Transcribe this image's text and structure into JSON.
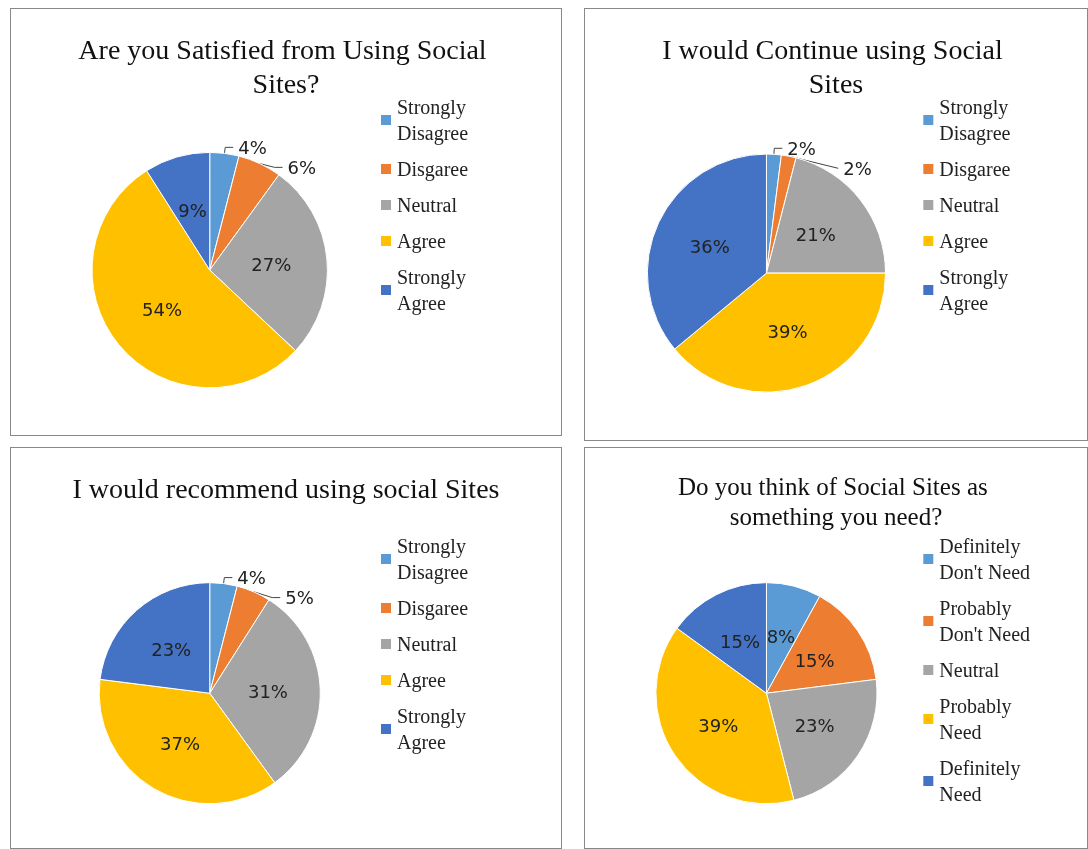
{
  "chart_data": [
    {
      "type": "pie",
      "title": "Are you Satisfied from Using Social Sites?",
      "categories": [
        "Strongly Disagree",
        "Disgaree",
        "Neutral",
        "Agree",
        "Strongly Agree"
      ],
      "values": [
        4,
        6,
        27,
        54,
        9
      ],
      "value_labels": [
        "4%",
        "6%",
        "27%",
        "54%",
        "9%"
      ],
      "colors": [
        "#5b9bd5",
        "#ed7d31",
        "#a5a5a5",
        "#ffc000",
        "#4472c4"
      ],
      "legend": "right"
    },
    {
      "type": "pie",
      "title": "I would Continue using Social Sites",
      "categories": [
        "Strongly Disagree",
        "Disgaree",
        "Neutral",
        "Agree",
        "Strongly Agree"
      ],
      "values": [
        2,
        2,
        21,
        39,
        36
      ],
      "value_labels": [
        "2%",
        "2%",
        "21%",
        "39%",
        "36%"
      ],
      "colors": [
        "#5b9bd5",
        "#ed7d31",
        "#a5a5a5",
        "#ffc000",
        "#4472c4"
      ],
      "legend": "right"
    },
    {
      "type": "pie",
      "title": "I would recommend using social Sites",
      "categories": [
        "Strongly Disagree",
        "Disgaree",
        "Neutral",
        "Agree",
        "Strongly Agree"
      ],
      "values": [
        4,
        5,
        31,
        37,
        23
      ],
      "value_labels": [
        "4%",
        "5%",
        "31%",
        "37%",
        "23%"
      ],
      "colors": [
        "#5b9bd5",
        "#ed7d31",
        "#a5a5a5",
        "#ffc000",
        "#4472c4"
      ],
      "legend": "right"
    },
    {
      "type": "pie",
      "title": "Do you think of Social Sites as something you need?",
      "categories": [
        "Definitely Don't Need",
        "Probably Don't Need",
        "Neutral",
        "Probably Need",
        "Definitely Need"
      ],
      "values": [
        8,
        15,
        23,
        39,
        15
      ],
      "value_labels": [
        "8%",
        "15%",
        "23%",
        "39%",
        "15%"
      ],
      "colors": [
        "#5b9bd5",
        "#ed7d31",
        "#a5a5a5",
        "#ffc000",
        "#4472c4"
      ],
      "legend": "right"
    }
  ]
}
